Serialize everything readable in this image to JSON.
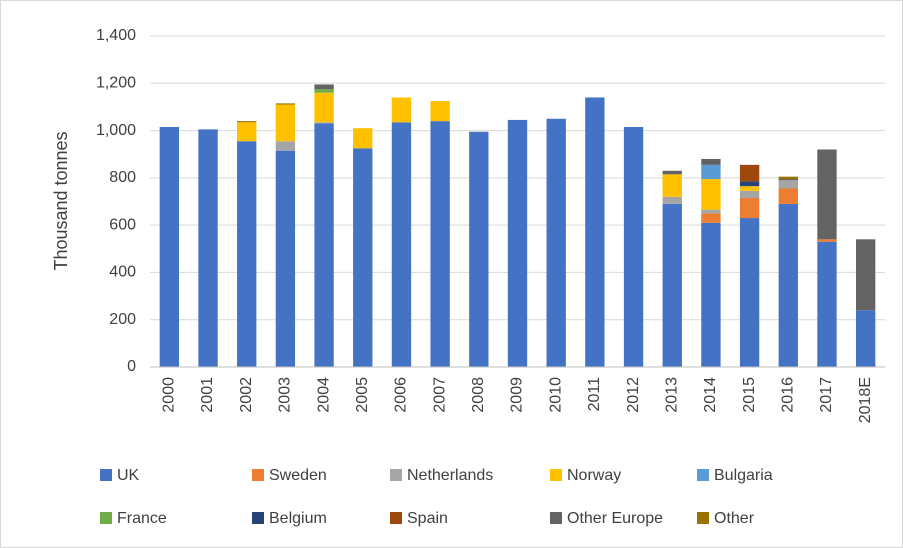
{
  "chart_data": {
    "type": "stacked_bar",
    "ylabel": "Thousand tonnes",
    "categories": [
      "2000",
      "2001",
      "2002",
      "2003",
      "2004",
      "2005",
      "2006",
      "2007",
      "2008",
      "2009",
      "2010",
      "2011",
      "2012",
      "2013",
      "2014",
      "2015",
      "2016",
      "2017",
      "2018E"
    ],
    "series": [
      {
        "name": "UK",
        "color": "#4472c4",
        "values": [
          1015,
          1005,
          955,
          915,
          1030,
          925,
          1035,
          1040,
          995,
          1045,
          1050,
          1140,
          1015,
          690,
          610,
          630,
          690,
          530,
          240
        ]
      },
      {
        "name": "Sweden",
        "color": "#ed7d31",
        "values": [
          0,
          0,
          0,
          0,
          0,
          0,
          0,
          0,
          0,
          0,
          0,
          0,
          0,
          0,
          40,
          85,
          65,
          10,
          0
        ]
      },
      {
        "name": "Netherlands",
        "color": "#a5a5a5",
        "values": [
          0,
          0,
          0,
          40,
          5,
          0,
          0,
          0,
          0,
          0,
          0,
          0,
          0,
          30,
          15,
          30,
          35,
          0,
          0
        ]
      },
      {
        "name": "Norway",
        "color": "#ffc000",
        "values": [
          0,
          0,
          80,
          155,
          125,
          85,
          105,
          85,
          0,
          0,
          0,
          0,
          0,
          95,
          130,
          20,
          0,
          0,
          0
        ]
      },
      {
        "name": "Bulgaria",
        "color": "#5b9bd5",
        "values": [
          0,
          0,
          0,
          0,
          0,
          0,
          0,
          0,
          0,
          0,
          0,
          0,
          0,
          0,
          60,
          0,
          0,
          0,
          0
        ]
      },
      {
        "name": "France",
        "color": "#70ad47",
        "values": [
          0,
          0,
          0,
          0,
          15,
          0,
          0,
          0,
          0,
          0,
          0,
          0,
          0,
          0,
          0,
          0,
          0,
          0,
          0
        ]
      },
      {
        "name": "Belgium",
        "color": "#264478",
        "values": [
          0,
          0,
          0,
          0,
          0,
          0,
          0,
          0,
          0,
          0,
          0,
          0,
          0,
          0,
          0,
          20,
          0,
          0,
          0
        ]
      },
      {
        "name": "Spain",
        "color": "#9e480e",
        "values": [
          0,
          0,
          0,
          0,
          0,
          0,
          0,
          0,
          0,
          0,
          0,
          0,
          0,
          0,
          0,
          70,
          0,
          0,
          0
        ]
      },
      {
        "name": "Other Europe",
        "color": "#636363",
        "values": [
          0,
          0,
          0,
          0,
          20,
          0,
          0,
          0,
          0,
          0,
          0,
          0,
          0,
          15,
          25,
          0,
          5,
          380,
          300
        ]
      },
      {
        "name": "Other",
        "color": "#997300",
        "values": [
          0,
          0,
          5,
          5,
          0,
          0,
          0,
          0,
          0,
          0,
          0,
          0,
          0,
          0,
          0,
          0,
          10,
          0,
          0
        ]
      }
    ],
    "ylim": [
      0,
      1400
    ],
    "yticks": [
      0,
      200,
      400,
      600,
      800,
      {
        "value": 1000,
        "label": "1,000"
      },
      {
        "value": 1200,
        "label": "1,200"
      },
      {
        "value": 1400,
        "label": "1,400"
      }
    ],
    "grid": true,
    "legend": "bottom"
  }
}
